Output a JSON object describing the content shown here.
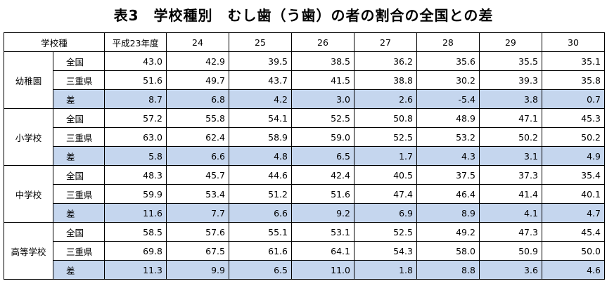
{
  "title": "表3　学校種別　むし歯（う歯）の者の割合の全国との差",
  "header": {
    "school_type": "学校種",
    "years": [
      "平成23年度",
      "24",
      "25",
      "26",
      "27",
      "28",
      "29",
      "30"
    ]
  },
  "groups": [
    {
      "name": "幼稚園",
      "rows": [
        {
          "label": "全国",
          "values": [
            "43.0",
            "42.9",
            "39.5",
            "38.5",
            "36.2",
            "35.6",
            "35.5",
            "35.1"
          ]
        },
        {
          "label": "三重県",
          "values": [
            "51.6",
            "49.7",
            "43.7",
            "41.5",
            "38.8",
            "30.2",
            "39.3",
            "35.8"
          ]
        },
        {
          "label": "差",
          "values": [
            "8.7",
            "6.8",
            "4.2",
            "3.0",
            "2.6",
            "-5.4",
            "3.8",
            "0.7"
          ]
        }
      ]
    },
    {
      "name": "小学校",
      "rows": [
        {
          "label": "全国",
          "values": [
            "57.2",
            "55.8",
            "54.1",
            "52.5",
            "50.8",
            "48.9",
            "47.1",
            "45.3"
          ]
        },
        {
          "label": "三重県",
          "values": [
            "63.0",
            "62.4",
            "58.9",
            "59.0",
            "52.5",
            "53.2",
            "50.2",
            "50.2"
          ]
        },
        {
          "label": "差",
          "values": [
            "5.8",
            "6.6",
            "4.8",
            "6.5",
            "1.7",
            "4.3",
            "3.1",
            "4.9"
          ]
        }
      ]
    },
    {
      "name": "中学校",
      "rows": [
        {
          "label": "全国",
          "values": [
            "48.3",
            "45.7",
            "44.6",
            "42.4",
            "40.5",
            "37.5",
            "37.3",
            "35.4"
          ]
        },
        {
          "label": "三重県",
          "values": [
            "59.9",
            "53.4",
            "51.2",
            "51.6",
            "47.4",
            "46.4",
            "41.4",
            "40.1"
          ]
        },
        {
          "label": "差",
          "values": [
            "11.6",
            "7.7",
            "6.6",
            "9.2",
            "6.9",
            "8.9",
            "4.1",
            "4.7"
          ]
        }
      ]
    },
    {
      "name": "高等学校",
      "rows": [
        {
          "label": "全国",
          "values": [
            "58.5",
            "57.6",
            "55.1",
            "53.1",
            "52.5",
            "49.2",
            "47.3",
            "45.4"
          ]
        },
        {
          "label": "三重県",
          "values": [
            "69.8",
            "67.5",
            "61.6",
            "64.1",
            "54.3",
            "58.0",
            "50.9",
            "50.0"
          ]
        },
        {
          "label": "差",
          "values": [
            "11.3",
            "9.9",
            "6.5",
            "11.0",
            "1.8",
            "8.8",
            "3.6",
            "4.6"
          ]
        }
      ]
    }
  ]
}
